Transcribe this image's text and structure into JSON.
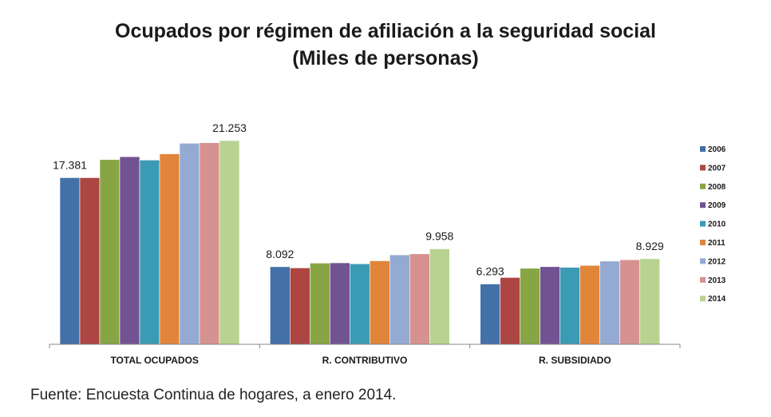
{
  "chart_data": {
    "type": "bar",
    "title": "Ocupados por régimen de afiliación a la seguridad social",
    "subtitle": "(Miles de personas)",
    "categories": [
      "TOTAL OCUPADOS",
      "R. CONTRIBUTIVO",
      "R. SUBSIDIADO"
    ],
    "series": [
      {
        "name": "2006",
        "color": "#4470A8",
        "values": [
          17381,
          8092,
          6293
        ]
      },
      {
        "name": "2007",
        "color": "#AD4543",
        "values": [
          17381,
          7970,
          6970
        ]
      },
      {
        "name": "2008",
        "color": "#88A545",
        "values": [
          19270,
          8470,
          7930
        ]
      },
      {
        "name": "2009",
        "color": "#725391",
        "values": [
          19570,
          8500,
          8100
        ]
      },
      {
        "name": "2010",
        "color": "#3B9BB4",
        "values": [
          19220,
          8400,
          8030
        ]
      },
      {
        "name": "2011",
        "color": "#E1853A",
        "values": [
          19870,
          8710,
          8230
        ]
      },
      {
        "name": "2012",
        "color": "#94AAD3",
        "values": [
          20970,
          9330,
          8680
        ]
      },
      {
        "name": "2013",
        "color": "#D69290",
        "values": [
          21030,
          9440,
          8820
        ]
      },
      {
        "name": "2014",
        "color": "#B9D291",
        "values": [
          21253,
          9958,
          8929
        ]
      }
    ],
    "data_labels": [
      {
        "category": 0,
        "series": 0,
        "text": "17.381"
      },
      {
        "category": 0,
        "series": 8,
        "text": "21.253"
      },
      {
        "category": 1,
        "series": 0,
        "text": "8.092"
      },
      {
        "category": 1,
        "series": 8,
        "text": "9.958"
      },
      {
        "category": 2,
        "series": 0,
        "text": "6.293"
      },
      {
        "category": 2,
        "series": 8,
        "text": "8.929"
      }
    ],
    "ylim": [
      0,
      24000
    ],
    "xlabel": "",
    "ylabel": "",
    "grid": false,
    "legend_position": "right"
  },
  "source_note": "Fuente: Encuesta Continua de hogares, a enero 2014."
}
